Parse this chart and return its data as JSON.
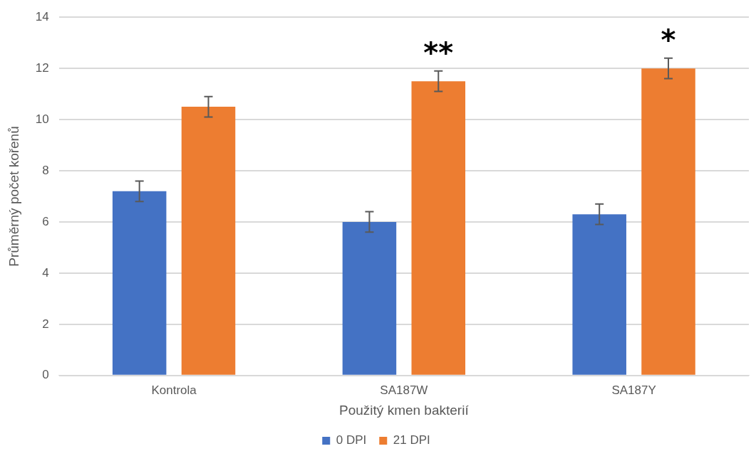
{
  "chart_data": {
    "type": "bar",
    "xlabel": "Použitý kmen bakterií",
    "ylabel": "Průměrný počet kořenů",
    "categories": [
      "Kontrola",
      "SA187W",
      "SA187Y"
    ],
    "series": [
      {
        "name": "0 DPI",
        "color": "#4472c4",
        "values": [
          7.2,
          6.0,
          6.3
        ],
        "errors": [
          0.4,
          0.4,
          0.4
        ]
      },
      {
        "name": "21 DPI",
        "color": "#ed7d31",
        "values": [
          10.5,
          11.5,
          12.0
        ],
        "errors": [
          0.4,
          0.4,
          0.4
        ]
      }
    ],
    "ylim": [
      0,
      14
    ],
    "yticks": [
      0,
      2,
      4,
      6,
      8,
      10,
      12,
      14
    ],
    "grid": "y",
    "legend": "bottom",
    "annotations": [
      "**",
      "*"
    ]
  }
}
